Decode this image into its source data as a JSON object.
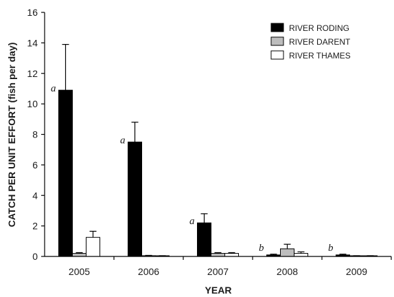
{
  "chart_data": {
    "type": "bar",
    "categories": [
      "2005",
      "2006",
      "2007",
      "2008",
      "2009"
    ],
    "series": [
      {
        "name": "RIVER RODING",
        "color": "#000000",
        "values": [
          10.9,
          7.5,
          2.2,
          0.1,
          0.1
        ],
        "errors": [
          3.0,
          1.3,
          0.6,
          0.05,
          0.05
        ]
      },
      {
        "name": "RIVER DARENT",
        "color": "#bdbdbd",
        "values": [
          0.2,
          0.05,
          0.2,
          0.5,
          0.03
        ],
        "errors": [
          0.05,
          0.02,
          0.05,
          0.3,
          0.02
        ]
      },
      {
        "name": "RIVER THAMES",
        "color": "#ffffff",
        "values": [
          1.25,
          0.03,
          0.2,
          0.2,
          0.03
        ],
        "errors": [
          0.4,
          0.02,
          0.05,
          0.1,
          0.02
        ]
      }
    ],
    "annotations": [
      "a",
      "a",
      "a",
      "b",
      "b"
    ],
    "xlabel": "YEAR",
    "ylabel": "CATCH PER UNIT EFFORT (fish per day)",
    "ylim": [
      0,
      16
    ],
    "yticks": [
      "0",
      "2",
      "4",
      "6",
      "8",
      "10",
      "12",
      "14",
      "16"
    ],
    "grid": false,
    "legend_position": "top-right"
  }
}
